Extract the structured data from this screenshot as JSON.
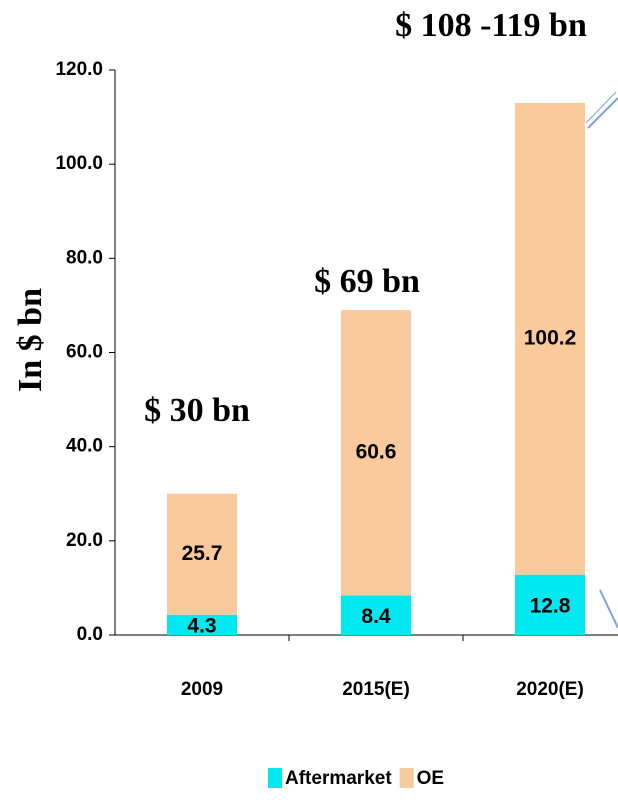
{
  "chart_data": {
    "type": "bar",
    "stacked": true,
    "y_label": "In $ bn",
    "categories": [
      "2009",
      "2015(E)",
      "2020(E)"
    ],
    "series": [
      {
        "name": "Aftermarket",
        "color": "#00e8f0",
        "values": [
          4.3,
          8.4,
          12.8
        ]
      },
      {
        "name": "OE",
        "color": "#fac99c",
        "values": [
          25.7,
          60.6,
          100.2
        ]
      }
    ],
    "annotations": [
      "$ 30 bn",
      "$ 69 bn",
      "$ 108 -119 bn"
    ],
    "ylim": [
      0,
      120
    ],
    "yticks": [
      {
        "value": 0,
        "label": "0.0"
      },
      {
        "value": 20,
        "label": "20.0"
      },
      {
        "value": 40,
        "label": "40.0"
      },
      {
        "value": 60,
        "label": "60.0"
      },
      {
        "value": 80,
        "label": "80.0"
      },
      {
        "value": 100,
        "label": "100.0"
      },
      {
        "value": 120,
        "label": "120.0"
      }
    ],
    "grid": false
  }
}
